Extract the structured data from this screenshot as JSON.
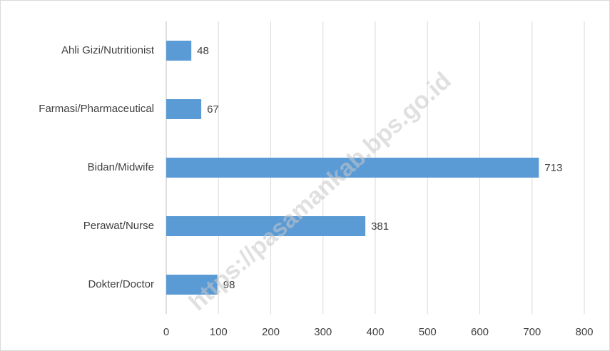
{
  "chart_data": {
    "type": "bar",
    "orientation": "horizontal",
    "categories": [
      "Ahli Gizi/Nutritionist",
      "Farmasi/Pharmaceutical",
      "Bidan/Midwife",
      "Perawat/Nurse",
      "Dokter/Doctor"
    ],
    "values": [
      48,
      67,
      713,
      381,
      98
    ],
    "color": "#5b9bd5",
    "xlim": [
      0,
      800
    ],
    "xticks": [
      0,
      100,
      200,
      300,
      400,
      500,
      600,
      700,
      800
    ],
    "grid": true,
    "watermark": "https://pasamankab.bps.go.id"
  }
}
